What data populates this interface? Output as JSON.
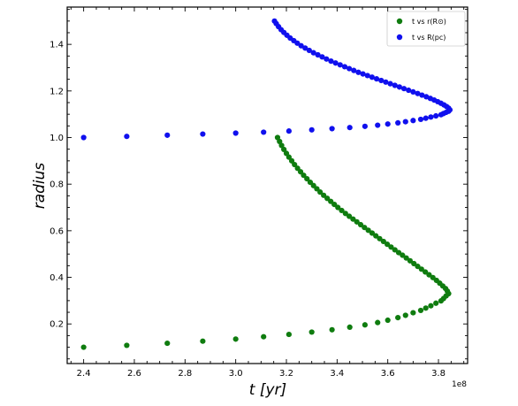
{
  "chart_data": {
    "type": "scatter",
    "xlabel": "t [yr]",
    "ylabel": "radius",
    "x_offset_label": "1e8",
    "xlim": [
      2.335,
      3.915
    ],
    "ylim": [
      0.03,
      1.56
    ],
    "x_ticks": [
      2.4,
      2.6,
      2.8,
      3.0,
      3.2,
      3.4,
      3.6,
      3.8
    ],
    "x_tick_labels": [
      "2.4",
      "2.6",
      "2.8",
      "3.0",
      "3.2",
      "3.4",
      "3.6",
      "3.8"
    ],
    "y_ticks": [
      0.2,
      0.4,
      0.6,
      0.8,
      1.0,
      1.2,
      1.4
    ],
    "y_tick_labels": [
      "0.2",
      "0.4",
      "0.6",
      "0.8",
      "1.0",
      "1.2",
      "1.4"
    ],
    "grid": false,
    "legend_position": "top-right",
    "series": [
      {
        "name": "t vs r(R⊙)",
        "color": "#0f7c0f",
        "points": [
          [
            2.4,
            0.1
          ],
          [
            2.57,
            0.108
          ],
          [
            2.73,
            0.117
          ],
          [
            2.87,
            0.126
          ],
          [
            3.0,
            0.135
          ],
          [
            3.11,
            0.145
          ],
          [
            3.21,
            0.155
          ],
          [
            3.3,
            0.165
          ],
          [
            3.38,
            0.175
          ],
          [
            3.45,
            0.186
          ],
          [
            3.51,
            0.196
          ],
          [
            3.56,
            0.206
          ],
          [
            3.6,
            0.216
          ],
          [
            3.64,
            0.227
          ],
          [
            3.67,
            0.237
          ],
          [
            3.7,
            0.248
          ],
          [
            3.73,
            0.258
          ],
          [
            3.75,
            0.268
          ],
          [
            3.77,
            0.278
          ],
          [
            3.79,
            0.289
          ],
          [
            3.81,
            0.299
          ],
          [
            3.82,
            0.309
          ],
          [
            3.83,
            0.32
          ],
          [
            3.84,
            0.33
          ],
          [
            3.835,
            0.341
          ],
          [
            3.828,
            0.352
          ],
          [
            3.817,
            0.363
          ],
          [
            3.805,
            0.375
          ],
          [
            3.792,
            0.387
          ],
          [
            3.778,
            0.399
          ],
          [
            3.763,
            0.411
          ],
          [
            3.748,
            0.423
          ],
          [
            3.733,
            0.435
          ],
          [
            3.718,
            0.447
          ],
          [
            3.703,
            0.459
          ],
          [
            3.688,
            0.471
          ],
          [
            3.673,
            0.483
          ],
          [
            3.658,
            0.495
          ],
          [
            3.643,
            0.506
          ],
          [
            3.628,
            0.518
          ],
          [
            3.613,
            0.53
          ],
          [
            3.598,
            0.542
          ],
          [
            3.583,
            0.554
          ],
          [
            3.568,
            0.566
          ],
          [
            3.553,
            0.578
          ],
          [
            3.538,
            0.59
          ],
          [
            3.523,
            0.602
          ],
          [
            3.508,
            0.614
          ],
          [
            3.493,
            0.626
          ],
          [
            3.478,
            0.638
          ],
          [
            3.463,
            0.65
          ],
          [
            3.448,
            0.662
          ],
          [
            3.433,
            0.674
          ],
          [
            3.418,
            0.687
          ],
          [
            3.403,
            0.7
          ],
          [
            3.389,
            0.713
          ],
          [
            3.375,
            0.726
          ],
          [
            3.361,
            0.739
          ],
          [
            3.347,
            0.752
          ],
          [
            3.333,
            0.766
          ],
          [
            3.32,
            0.78
          ],
          [
            3.307,
            0.794
          ],
          [
            3.294,
            0.808
          ],
          [
            3.281,
            0.823
          ],
          [
            3.268,
            0.838
          ],
          [
            3.256,
            0.853
          ],
          [
            3.244,
            0.868
          ],
          [
            3.232,
            0.884
          ],
          [
            3.221,
            0.9
          ],
          [
            3.21,
            0.916
          ],
          [
            3.2,
            0.932
          ],
          [
            3.19,
            0.949
          ],
          [
            3.181,
            0.966
          ],
          [
            3.173,
            0.983
          ],
          [
            3.165,
            1.0
          ]
        ]
      },
      {
        "name": "t vs R(pc)",
        "color": "#1010ee",
        "points": [
          [
            2.4,
            1.0
          ],
          [
            2.57,
            1.005
          ],
          [
            2.73,
            1.01
          ],
          [
            2.87,
            1.015
          ],
          [
            3.0,
            1.019
          ],
          [
            3.11,
            1.023
          ],
          [
            3.21,
            1.028
          ],
          [
            3.3,
            1.033
          ],
          [
            3.38,
            1.038
          ],
          [
            3.45,
            1.043
          ],
          [
            3.51,
            1.048
          ],
          [
            3.56,
            1.053
          ],
          [
            3.6,
            1.058
          ],
          [
            3.64,
            1.063
          ],
          [
            3.67,
            1.068
          ],
          [
            3.7,
            1.073
          ],
          [
            3.73,
            1.078
          ],
          [
            3.75,
            1.083
          ],
          [
            3.77,
            1.088
          ],
          [
            3.79,
            1.093
          ],
          [
            3.81,
            1.098
          ],
          [
            3.82,
            1.103
          ],
          [
            3.83,
            1.108
          ],
          [
            3.84,
            1.113
          ],
          [
            3.845,
            1.119
          ],
          [
            3.84,
            1.126
          ],
          [
            3.832,
            1.133
          ],
          [
            3.822,
            1.14
          ],
          [
            3.81,
            1.147
          ],
          [
            3.797,
            1.154
          ],
          [
            3.783,
            1.161
          ],
          [
            3.768,
            1.168
          ],
          [
            3.752,
            1.175
          ],
          [
            3.735,
            1.182
          ],
          [
            3.718,
            1.189
          ],
          [
            3.7,
            1.196
          ],
          [
            3.682,
            1.203
          ],
          [
            3.664,
            1.21
          ],
          [
            3.646,
            1.217
          ],
          [
            3.628,
            1.224
          ],
          [
            3.61,
            1.231
          ],
          [
            3.592,
            1.238
          ],
          [
            3.574,
            1.245
          ],
          [
            3.556,
            1.252
          ],
          [
            3.538,
            1.259
          ],
          [
            3.52,
            1.266
          ],
          [
            3.502,
            1.273
          ],
          [
            3.484,
            1.28
          ],
          [
            3.466,
            1.288
          ],
          [
            3.448,
            1.296
          ],
          [
            3.43,
            1.304
          ],
          [
            3.412,
            1.312
          ],
          [
            3.394,
            1.32
          ],
          [
            3.376,
            1.328
          ],
          [
            3.358,
            1.337
          ],
          [
            3.341,
            1.346
          ],
          [
            3.324,
            1.355
          ],
          [
            3.307,
            1.364
          ],
          [
            3.29,
            1.374
          ],
          [
            3.274,
            1.384
          ],
          [
            3.258,
            1.394
          ],
          [
            3.243,
            1.405
          ],
          [
            3.229,
            1.416
          ],
          [
            3.215,
            1.427
          ],
          [
            3.202,
            1.439
          ],
          [
            3.19,
            1.451
          ],
          [
            3.179,
            1.463
          ],
          [
            3.169,
            1.476
          ],
          [
            3.16,
            1.489
          ],
          [
            3.153,
            1.5
          ]
        ]
      }
    ]
  }
}
